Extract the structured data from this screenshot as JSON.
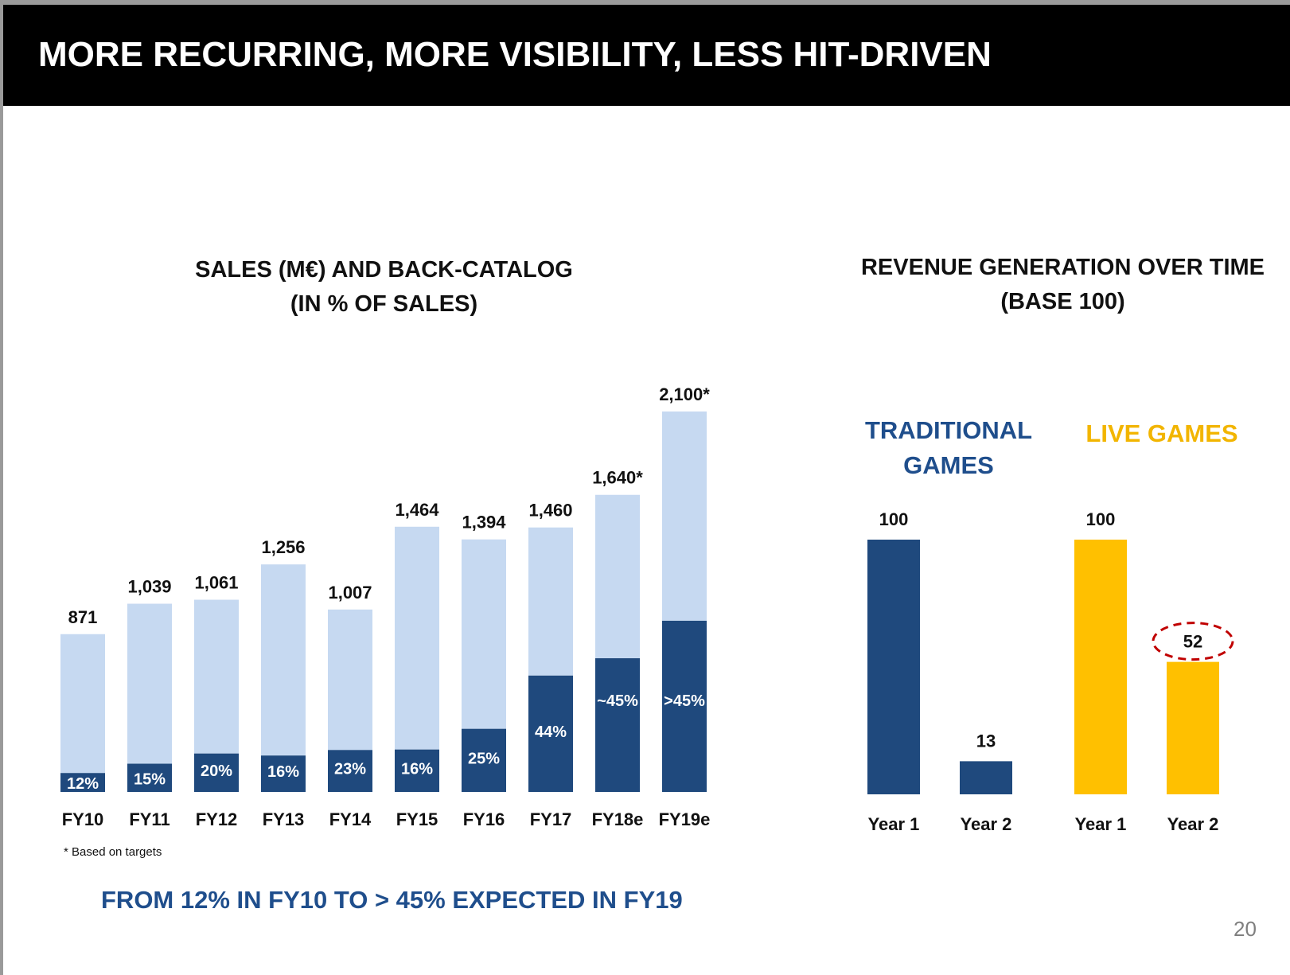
{
  "header": {
    "title": "MORE RECURRING, MORE VISIBILITY, LESS HIT-DRIVEN"
  },
  "colors": {
    "header_bg": "#000000",
    "dark_blue": "#1f497d",
    "light_blue": "#c6d9f1",
    "gold": "#ffc000",
    "accent_text": "#1f4e8c",
    "dashed_circle": "#c00000"
  },
  "chart_data": [
    {
      "type": "bar",
      "stacked": true,
      "title": "SALES (M€) AND BACK-CATALOG\n(IN % OF SALES)",
      "categories": [
        "FY10",
        "FY11",
        "FY12",
        "FY13",
        "FY14",
        "FY15",
        "FY16",
        "FY17",
        "FY18e",
        "FY19e"
      ],
      "totals": [
        871,
        1039,
        1061,
        1256,
        1007,
        1464,
        1394,
        1460,
        1640,
        2100
      ],
      "total_labels": [
        "871",
        "1,039",
        "1,061",
        "1,256",
        "1,007",
        "1,464",
        "1,394",
        "1,460",
        "1,640*",
        "2,100*"
      ],
      "back_catalog_pct": [
        12,
        15,
        20,
        16,
        23,
        16,
        25,
        44,
        45,
        45
      ],
      "back_catalog_labels": [
        "12%",
        "15%",
        "20%",
        "16%",
        "23%",
        "16%",
        "25%",
        "44%",
        "~45%",
        ">45%"
      ],
      "series": [
        {
          "name": "",
          "color": "#1f497d"
        },
        {
          "name": "",
          "color": "#c6d9f1"
        }
      ],
      "footnote": "* Based on targets"
    },
    {
      "type": "bar",
      "title": "REVENUE GENERATION OVER TIME\n(BASE 100)",
      "groups": [
        {
          "name": "TRADITIONAL GAMES",
          "color": "#1f497d",
          "categories": [
            "Year 1",
            "Year 2"
          ],
          "values": [
            100,
            13
          ]
        },
        {
          "name": "LIVE GAMES",
          "color": "#ffc000",
          "categories": [
            "Year 1",
            "Year 2"
          ],
          "values": [
            100,
            52
          ],
          "highlight": "Year 2"
        }
      ]
    }
  ],
  "conclusion": "FROM 12% IN FY10 TO > 45% EXPECTED IN FY19",
  "page_number": "20"
}
